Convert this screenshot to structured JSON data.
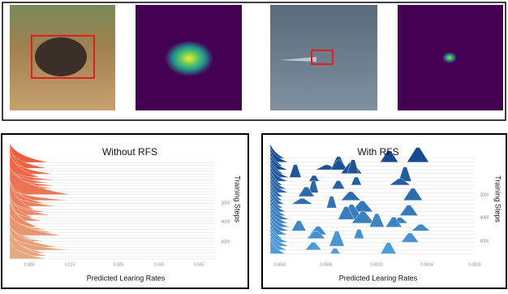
{
  "left_panel": {
    "title": "Without RFS",
    "x_label": "Predicted Learing Rates",
    "y_label": "Training Steps",
    "x_ticks": [
      "0.005",
      "0.015",
      "0.025",
      "0.035",
      "0.045"
    ],
    "y_ticks": [
      "2000",
      "4000",
      "6000"
    ]
  },
  "right_panel": {
    "title": "With RFS",
    "x_label": "Predicted Learing Rates",
    "y_label": "Training Steps",
    "x_ticks": [
      "0.0002",
      "0.0006",
      "0.0010",
      "0.0014",
      "0.0018"
    ],
    "y_ticks": [
      "2000",
      "4000",
      "6000"
    ]
  }
}
